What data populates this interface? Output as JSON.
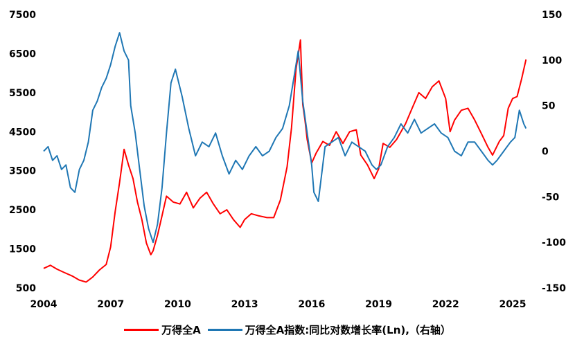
{
  "chart_data": {
    "type": "line",
    "title": "",
    "x_ticks": [
      "2004",
      "2007",
      "2010",
      "2013",
      "2016",
      "2019",
      "2022",
      "2025"
    ],
    "x_range": [
      2004.0,
      2025.0
    ],
    "left_axis": {
      "ticks": [
        "7500",
        "6500",
        "5500",
        "4500",
        "3500",
        "2500",
        "1500",
        "500"
      ],
      "range": [
        500,
        7500
      ]
    },
    "right_axis": {
      "ticks": [
        "150",
        "100",
        "50",
        "0",
        "-50",
        "-100",
        "-150"
      ],
      "range": [
        -150,
        150
      ]
    },
    "series": [
      {
        "name": "万得全A",
        "color": "#ff0000",
        "axis": "left",
        "x": [
          2004.0,
          2004.3,
          2004.6,
          2004.9,
          2005.3,
          2005.6,
          2005.9,
          2006.2,
          2006.5,
          2006.8,
          2007.0,
          2007.2,
          2007.4,
          2007.6,
          2007.8,
          2008.0,
          2008.2,
          2008.4,
          2008.6,
          2008.8,
          2008.9,
          2009.1,
          2009.3,
          2009.5,
          2009.8,
          2010.1,
          2010.4,
          2010.7,
          2011.0,
          2011.3,
          2011.6,
          2011.9,
          2012.2,
          2012.5,
          2012.8,
          2013.0,
          2013.3,
          2013.6,
          2014.0,
          2014.3,
          2014.6,
          2014.9,
          2015.1,
          2015.3,
          2015.5,
          2015.6,
          2015.7,
          2015.8,
          2016.0,
          2016.2,
          2016.5,
          2016.8,
          2017.1,
          2017.4,
          2017.7,
          2018.0,
          2018.2,
          2018.5,
          2018.8,
          2019.0,
          2019.2,
          2019.5,
          2019.8,
          2020.2,
          2020.5,
          2020.8,
          2021.1,
          2021.4,
          2021.7,
          2022.0,
          2022.2,
          2022.4,
          2022.7,
          2023.0,
          2023.3,
          2023.6,
          2023.9,
          2024.1,
          2024.4,
          2024.6,
          2024.8,
          2025.0,
          2025.2,
          2025.4,
          2025.6
        ],
        "y": [
          1000,
          1080,
          980,
          900,
          800,
          700,
          650,
          780,
          960,
          1100,
          1550,
          2450,
          3200,
          4050,
          3650,
          3300,
          2700,
          2250,
          1650,
          1350,
          1450,
          1850,
          2350,
          2850,
          2700,
          2650,
          2950,
          2550,
          2800,
          2950,
          2650,
          2400,
          2500,
          2250,
          2050,
          2250,
          2400,
          2350,
          2300,
          2300,
          2750,
          3600,
          4600,
          6100,
          6850,
          5200,
          4800,
          4300,
          3700,
          3950,
          4250,
          4150,
          4500,
          4200,
          4500,
          4550,
          3900,
          3650,
          3300,
          3550,
          4200,
          4100,
          4300,
          4700,
          5100,
          5500,
          5350,
          5650,
          5800,
          5350,
          4500,
          4800,
          5050,
          5100,
          4800,
          4450,
          4100,
          3900,
          4250,
          4400,
          5100,
          5350,
          5400,
          5850,
          6350
        ]
      },
      {
        "name": "万得全A指数:同比对数增长率(Ln),（右轴）",
        "color": "#1f77b4",
        "axis": "right",
        "x": [
          2004.0,
          2004.2,
          2004.4,
          2004.6,
          2004.8,
          2005.0,
          2005.2,
          2005.4,
          2005.6,
          2005.8,
          2006.0,
          2006.2,
          2006.4,
          2006.6,
          2006.8,
          2007.0,
          2007.2,
          2007.4,
          2007.6,
          2007.8,
          2007.9,
          2008.1,
          2008.3,
          2008.5,
          2008.7,
          2008.9,
          2009.1,
          2009.3,
          2009.5,
          2009.7,
          2009.9,
          2010.2,
          2010.5,
          2010.8,
          2011.1,
          2011.4,
          2011.7,
          2012.0,
          2012.3,
          2012.6,
          2012.9,
          2013.2,
          2013.5,
          2013.8,
          2014.1,
          2014.4,
          2014.7,
          2015.0,
          2015.2,
          2015.4,
          2015.6,
          2015.8,
          2016.0,
          2016.1,
          2016.3,
          2016.6,
          2016.9,
          2017.2,
          2017.5,
          2017.8,
          2018.1,
          2018.4,
          2018.7,
          2018.9,
          2019.1,
          2019.4,
          2019.7,
          2020.0,
          2020.3,
          2020.6,
          2020.9,
          2021.2,
          2021.5,
          2021.8,
          2022.1,
          2022.4,
          2022.7,
          2023.0,
          2023.3,
          2023.6,
          2023.9,
          2024.1,
          2024.3,
          2024.6,
          2024.9,
          2025.1,
          2025.3,
          2025.5,
          2025.6
        ],
        "y": [
          0,
          5,
          -10,
          -5,
          -20,
          -15,
          -40,
          -45,
          -20,
          -10,
          10,
          45,
          55,
          70,
          80,
          95,
          115,
          130,
          110,
          100,
          50,
          20,
          -20,
          -60,
          -85,
          -100,
          -80,
          -40,
          20,
          75,
          90,
          60,
          25,
          -5,
          10,
          5,
          20,
          -5,
          -25,
          -10,
          -20,
          -5,
          5,
          -5,
          0,
          15,
          25,
          50,
          80,
          110,
          55,
          20,
          -15,
          -45,
          -55,
          5,
          10,
          15,
          -5,
          10,
          5,
          0,
          -15,
          -20,
          -15,
          5,
          15,
          30,
          20,
          35,
          20,
          25,
          30,
          20,
          15,
          0,
          -5,
          10,
          10,
          0,
          -10,
          -15,
          -10,
          0,
          10,
          15,
          45,
          30,
          25
        ]
      }
    ],
    "legend": "bottom"
  }
}
